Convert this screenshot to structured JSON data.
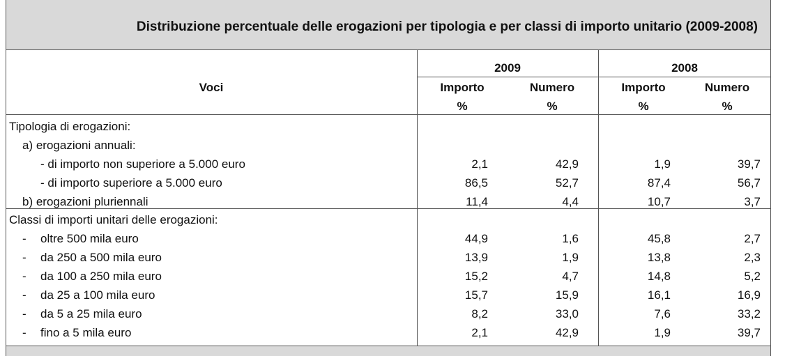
{
  "title": "Distribuzione percentuale delle erogazioni per tipologia e per classi di importo unitario (2009-2008)",
  "header": {
    "voci": "Voci",
    "year1": "2009",
    "year2": "2008",
    "importo": "Importo",
    "numero": "Numero",
    "pct": "%"
  },
  "section1": {
    "heading": "Tipologia di erogazioni:",
    "sub_a": "a)  erogazioni annuali:",
    "rows": [
      {
        "label": "-  di importo non superiore a 5.000 euro",
        "imp09": "2,1",
        "num09": "42,9",
        "imp08": "1,9",
        "num08": "39,7"
      },
      {
        "label": "-  di importo superiore a 5.000 euro",
        "imp09": "86,5",
        "num09": "52,7",
        "imp08": "87,4",
        "num08": "56,7"
      }
    ],
    "sub_b": {
      "label": "b)  erogazioni pluriennali",
      "imp09": "11,4",
      "num09": "4,4",
      "imp08": "10,7",
      "num08": "3,7"
    }
  },
  "section2": {
    "heading": "Classi di importi unitari delle erogazioni:",
    "rows": [
      {
        "dash": "-",
        "label": "oltre 500 mila euro",
        "imp09": "44,9",
        "num09": "1,6",
        "imp08": "45,8",
        "num08": "2,7"
      },
      {
        "dash": "-",
        "label": "da 250 a 500 mila euro",
        "imp09": "13,9",
        "num09": "1,9",
        "imp08": "13,8",
        "num08": "2,3"
      },
      {
        "dash": "-",
        "label": "da 100 a 250 mila euro",
        "imp09": "15,2",
        "num09": "4,7",
        "imp08": "14,8",
        "num08": "5,2"
      },
      {
        "dash": "-",
        "label": "da 25 a 100 mila euro",
        "imp09": "15,7",
        "num09": "15,9",
        "imp08": "16,1",
        "num08": "16,9"
      },
      {
        "dash": "-",
        "label": "da 5 a 25 mila euro",
        "imp09": "8,2",
        "num09": "33,0",
        "imp08": "7,6",
        "num08": "33,2"
      },
      {
        "dash": "-",
        "label": "fino a 5 mila euro",
        "imp09": "2,1",
        "num09": "42,9",
        "imp08": "1,9",
        "num08": "39,7"
      }
    ]
  }
}
